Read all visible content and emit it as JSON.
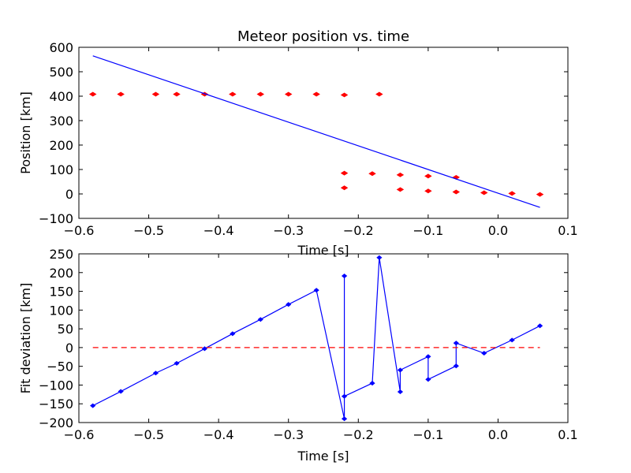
{
  "chart_data": [
    {
      "type": "scatter",
      "title": "Meteor position vs. time",
      "xlabel": "Time [s]",
      "ylabel": "Position [km]",
      "xlim": [
        -0.6,
        0.1
      ],
      "ylim": [
        -100,
        600
      ],
      "xticks": [
        -0.6,
        -0.5,
        -0.4,
        -0.3,
        -0.2,
        -0.1,
        0.0,
        0.1
      ],
      "yticks": [
        -100,
        0,
        100,
        200,
        300,
        400,
        500,
        600
      ],
      "xtick_labels": [
        "−0.6",
        "−0.5",
        "−0.4",
        "−0.3",
        "−0.2",
        "−0.1",
        "0.0",
        "0.1"
      ],
      "ytick_labels": [
        "−100",
        "0",
        "100",
        "200",
        "300",
        "400",
        "500",
        "600"
      ],
      "grid": false,
      "series": [
        {
          "style": "points",
          "color": "#ff0000",
          "x": [
            -0.58,
            -0.54,
            -0.49,
            -0.46,
            -0.42,
            -0.38,
            -0.34,
            -0.3,
            -0.26,
            -0.22,
            -0.17,
            -0.22,
            -0.18,
            -0.14,
            -0.1,
            -0.06,
            -0.22,
            -0.14,
            -0.1,
            -0.06,
            -0.02,
            0.02,
            0.06
          ],
          "y": [
            408,
            408,
            408,
            408,
            408,
            408,
            408,
            408,
            408,
            405,
            408,
            85,
            83,
            78,
            73,
            68,
            25,
            18,
            12,
            8,
            5,
            2,
            -2
          ]
        },
        {
          "style": "line",
          "color": "#0000ff",
          "x": [
            -0.58,
            0.06
          ],
          "y": [
            565,
            -55
          ]
        }
      ]
    },
    {
      "type": "line",
      "title": "",
      "xlabel": "Time [s]",
      "ylabel": "Fit deviation [km]",
      "xlim": [
        -0.6,
        0.1
      ],
      "ylim": [
        -200,
        250
      ],
      "xticks": [
        -0.6,
        -0.5,
        -0.4,
        -0.3,
        -0.2,
        -0.1,
        0.0,
        0.1
      ],
      "yticks": [
        -200,
        -150,
        -100,
        -50,
        0,
        50,
        100,
        150,
        200,
        250
      ],
      "xtick_labels": [
        "−0.6",
        "−0.5",
        "−0.4",
        "−0.3",
        "−0.2",
        "−0.1",
        "0.0",
        "0.1"
      ],
      "ytick_labels": [
        "−200",
        "−150",
        "−100",
        "−50",
        "0",
        "50",
        "100",
        "150",
        "200",
        "250"
      ],
      "grid": false,
      "series": [
        {
          "style": "line-markers",
          "color": "#0000ff",
          "x": [
            -0.58,
            -0.54,
            -0.49,
            -0.46,
            -0.42,
            -0.38,
            -0.34,
            -0.3,
            -0.26,
            -0.22,
            -0.22,
            -0.22,
            -0.18,
            -0.17,
            -0.14,
            -0.14,
            -0.1,
            -0.1,
            -0.06,
            -0.06,
            -0.02,
            0.02,
            0.06
          ],
          "y": [
            -155,
            -117,
            -68,
            -42,
            -3,
            37,
            75,
            115,
            153,
            -190,
            191,
            -130,
            -95,
            240,
            -118,
            -60,
            -24,
            -85,
            -49,
            12,
            -15,
            20,
            58
          ]
        },
        {
          "style": "dashed-line",
          "color": "#ff0000",
          "x": [
            -0.58,
            0.06
          ],
          "y": [
            0,
            0
          ]
        }
      ]
    }
  ]
}
